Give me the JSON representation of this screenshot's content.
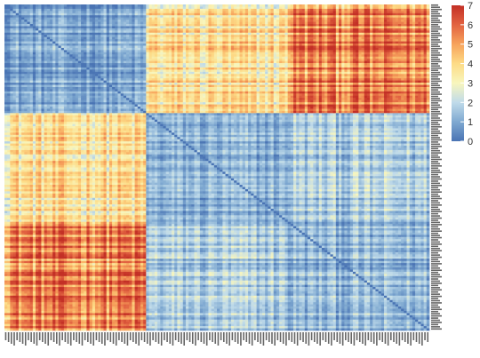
{
  "chart_data": {
    "type": "heatmap",
    "title": "",
    "xlabel": "",
    "ylabel": "",
    "cluster_sizes": [
      50,
      50,
      50
    ],
    "block_means": [
      [
        0.9,
        3.6,
        5.4
      ],
      [
        3.6,
        1.1,
        1.6
      ],
      [
        5.4,
        1.6,
        1.2
      ]
    ],
    "diagonal_value": 0,
    "value_range": [
      0,
      7.2
    ],
    "colorbar": {
      "ticks": [
        0,
        1,
        2,
        3,
        4,
        5,
        6,
        7
      ],
      "colors": [
        "#4a74b4",
        "#7fa9d1",
        "#c0dbea",
        "#f8f6bd",
        "#fddb86",
        "#f7a35c",
        "#e26341",
        "#c33026"
      ],
      "placement": "right"
    },
    "row_labels_side": "right",
    "col_labels_side": "bottom"
  }
}
